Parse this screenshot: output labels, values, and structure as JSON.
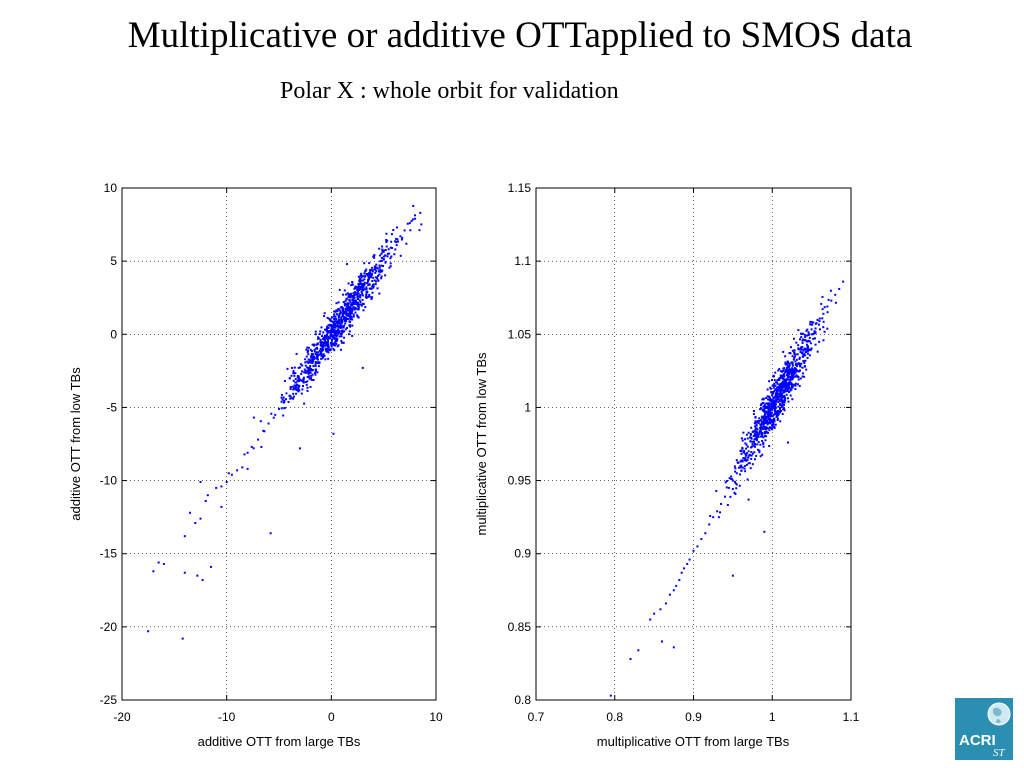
{
  "slide": {
    "title": "Multiplicative or additive OTTapplied to SMOS data",
    "subtitle": "Polar X : whole orbit for validation"
  },
  "logo": {
    "text": "ACRI",
    "subtext": "ST",
    "color": "#2a8fb0"
  },
  "chart_data": [
    {
      "type": "scatter",
      "color": "#0000ff",
      "grid": true,
      "xlabel": "additive OTT from large TBs",
      "ylabel": "additive OTT from low TBs",
      "xlim": [
        -20,
        10
      ],
      "ylim": [
        -25,
        10
      ],
      "xticks": [
        "-20",
        "-10",
        "0",
        "10"
      ],
      "yticks": [
        "-25",
        "-20",
        "-15",
        "-10",
        "-5",
        "0",
        "5",
        "10"
      ],
      "trend": {
        "slope": 1.02,
        "intercept": 0.0
      },
      "x": [
        -17.5,
        -17,
        -16.5,
        -16,
        -14.2,
        -14,
        -13.5,
        -13,
        -12.8,
        -12.5,
        -12.3,
        -12,
        -11.8,
        -11.5,
        -11,
        -10.5,
        -10,
        -9.8,
        -9.5,
        -9,
        -8.5,
        -8,
        -7.6,
        -7,
        -6.5,
        -6,
        -5.5,
        -5,
        -4.5,
        -4,
        -3.5,
        -3,
        -2.6,
        -2.2,
        -1.8,
        -1.4,
        -1,
        -0.6,
        -0.3,
        0,
        0.3,
        0.6,
        1,
        1.4,
        1.8,
        2.2,
        2.6,
        3,
        3.4,
        3.8,
        4.2,
        4.6,
        5,
        5.4,
        5.8,
        6.2,
        6.6,
        7,
        7.5,
        8,
        8.5,
        -5.8,
        -3,
        0.2,
        3,
        -12.5,
        -14,
        -10.5,
        1.5,
        -8
      ],
      "y": [
        -20.3,
        -16.2,
        -15.6,
        -15.7,
        -20.8,
        -13.8,
        -12.2,
        -12.9,
        -16.5,
        -12.6,
        -16.8,
        -11.4,
        -11,
        -15.9,
        -10.5,
        -10.4,
        -10.1,
        -9.5,
        -9.6,
        -9.3,
        -9.1,
        -8.1,
        -7.7,
        -7.2,
        -6.6,
        -6.1,
        -5.7,
        -5.1,
        -4.6,
        -4.2,
        -3.5,
        -3.1,
        -2.6,
        -2.3,
        -1.7,
        -1.4,
        -1,
        -0.6,
        -0.3,
        0,
        0.3,
        0.6,
        1,
        1.5,
        1.8,
        2.3,
        2.6,
        3,
        3.5,
        3.9,
        4.2,
        4.7,
        5.1,
        5.5,
        5.9,
        6.3,
        6.7,
        7.1,
        7.6,
        7.9,
        8.3,
        -13.6,
        -7.8,
        -6.8,
        -2.3,
        -10.1,
        -16.3,
        -11.8,
        4.8,
        -9.2
      ]
    },
    {
      "type": "scatter",
      "color": "#0000ff",
      "grid": true,
      "xlabel": "multiplicative OTT from large TBs",
      "ylabel": "multiplicative OTT from low TBs",
      "xlim": [
        0.7,
        1.1
      ],
      "ylim": [
        0.8,
        1.15
      ],
      "xticks": [
        "0.7",
        "0.8",
        "0.9",
        "1",
        "1.1"
      ],
      "yticks": [
        "0.8",
        "0.85",
        "0.9",
        "0.95",
        "1",
        "1.05",
        "1.1",
        "1.15"
      ],
      "trend": {
        "slope": 0.955,
        "intercept": 0.045
      },
      "x": [
        0.795,
        0.82,
        0.83,
        0.845,
        0.85,
        0.858,
        0.865,
        0.87,
        0.875,
        0.878,
        0.882,
        0.885,
        0.888,
        0.892,
        0.895,
        0.9,
        0.905,
        0.91,
        0.915,
        0.92,
        0.925,
        0.93,
        0.935,
        0.94,
        0.945,
        0.95,
        0.955,
        0.96,
        0.965,
        0.97,
        0.975,
        0.98,
        0.985,
        0.99,
        0.995,
        1,
        1.005,
        1.01,
        1.015,
        1.02,
        1.025,
        1.03,
        1.035,
        1.04,
        1.045,
        1.05,
        1.055,
        1.06,
        1.065,
        1.07,
        1.075,
        1.08,
        1.085,
        1.09,
        0.86,
        0.875,
        0.95,
        0.99,
        1.02,
        0.97
      ],
      "y": [
        0.803,
        0.828,
        0.834,
        0.855,
        0.859,
        0.862,
        0.866,
        0.872,
        0.875,
        0.878,
        0.882,
        0.887,
        0.89,
        0.893,
        0.896,
        0.902,
        0.905,
        0.91,
        0.914,
        0.92,
        0.925,
        0.929,
        0.934,
        0.939,
        0.945,
        0.95,
        0.955,
        0.959,
        0.965,
        0.97,
        0.975,
        0.98,
        0.985,
        0.989,
        0.995,
        1,
        1.004,
        1.01,
        1.014,
        1.019,
        1.024,
        1.029,
        1.034,
        1.039,
        1.045,
        1.05,
        1.054,
        1.059,
        1.064,
        1.069,
        1.073,
        1.077,
        1.081,
        1.086,
        0.84,
        0.836,
        0.885,
        0.915,
        0.976,
        0.937
      ]
    }
  ]
}
